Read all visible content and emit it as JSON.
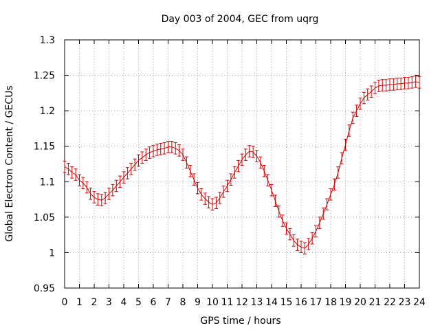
{
  "chart_data": {
    "type": "line",
    "title": "Day 003 of 2004, GEC from uqrg",
    "xlabel": "GPS time / hours",
    "ylabel": "Global Electron Content / GECUs",
    "xlim": [
      0,
      24
    ],
    "ylim": [
      0.95,
      1.3
    ],
    "grid": true,
    "x_ticks": [
      "0",
      "1",
      "2",
      "3",
      "4",
      "5",
      "6",
      "7",
      "8",
      "9",
      "10",
      "11",
      "12",
      "13",
      "14",
      "15",
      "16",
      "17",
      "18",
      "19",
      "20",
      "21",
      "22",
      "23",
      "24"
    ],
    "y_ticks": [
      "0.95",
      "1",
      "1.05",
      "1.1",
      "1.15",
      "1.2",
      "1.25",
      "1.3"
    ],
    "series": [
      {
        "color": "#cc0000",
        "error_bar": 0.008,
        "x": [
          0,
          0.25,
          0.5,
          0.75,
          1,
          1.25,
          1.5,
          1.75,
          2,
          2.25,
          2.5,
          2.75,
          3,
          3.25,
          3.5,
          3.75,
          4,
          4.25,
          4.5,
          4.75,
          5,
          5.25,
          5.5,
          5.75,
          6,
          6.25,
          6.5,
          6.75,
          7,
          7.25,
          7.5,
          7.75,
          8,
          8.25,
          8.5,
          8.75,
          9,
          9.25,
          9.5,
          9.75,
          10,
          10.25,
          10.5,
          10.75,
          11,
          11.25,
          11.5,
          11.75,
          12,
          12.25,
          12.5,
          12.75,
          13,
          13.25,
          13.5,
          13.75,
          14,
          14.25,
          14.5,
          14.75,
          15,
          15.25,
          15.5,
          15.75,
          16,
          16.25,
          16.5,
          16.75,
          17,
          17.25,
          17.5,
          17.75,
          18,
          18.25,
          18.5,
          18.75,
          19,
          19.25,
          19.5,
          19.75,
          20,
          20.25,
          20.5,
          20.75,
          21,
          21.25,
          21.5,
          21.75,
          22,
          22.25,
          22.5,
          22.75,
          23,
          23.25,
          23.5,
          23.75,
          24
        ],
        "y": [
          1.121,
          1.118,
          1.113,
          1.11,
          1.102,
          1.098,
          1.092,
          1.083,
          1.078,
          1.075,
          1.074,
          1.077,
          1.083,
          1.088,
          1.094,
          1.1,
          1.106,
          1.112,
          1.118,
          1.124,
          1.13,
          1.134,
          1.138,
          1.141,
          1.143,
          1.145,
          1.146,
          1.147,
          1.149,
          1.149,
          1.147,
          1.144,
          1.138,
          1.127,
          1.115,
          1.103,
          1.091,
          1.082,
          1.076,
          1.071,
          1.068,
          1.07,
          1.077,
          1.086,
          1.094,
          1.103,
          1.113,
          1.122,
          1.131,
          1.138,
          1.143,
          1.142,
          1.136,
          1.127,
          1.115,
          1.102,
          1.088,
          1.073,
          1.058,
          1.045,
          1.034,
          1.026,
          1.017,
          1.011,
          1.008,
          1.006,
          1.012,
          1.02,
          1.03,
          1.042,
          1.055,
          1.068,
          1.082,
          1.096,
          1.113,
          1.133,
          1.152,
          1.172,
          1.19,
          1.2,
          1.21,
          1.218,
          1.223,
          1.227,
          1.232,
          1.235,
          1.236,
          1.236,
          1.237,
          1.237,
          1.238,
          1.238,
          1.239,
          1.239,
          1.24,
          1.241,
          1.24
        ]
      }
    ]
  }
}
